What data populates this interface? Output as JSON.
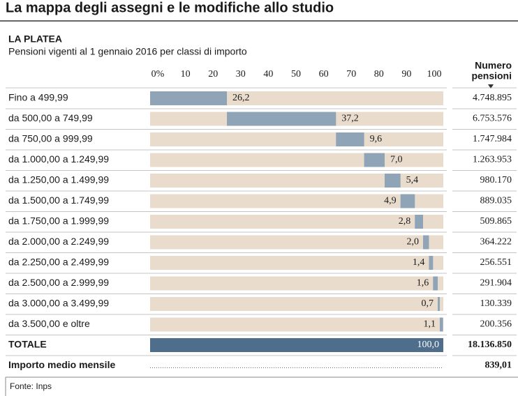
{
  "chart_data": {
    "type": "bar",
    "title": "La mappa degli assegni e le modifiche allo studio",
    "subtitle": "LA PLATEA",
    "description": "Pensioni vigenti al 1 gennaio 2016 per classi di importo",
    "count_header": [
      "Numero",
      "pensioni"
    ],
    "xlim": [
      0,
      100
    ],
    "xticks": [
      {
        "value": 0,
        "label": "0%"
      },
      10,
      20,
      30,
      40,
      50,
      60,
      70,
      80,
      90,
      100
    ],
    "color": "#8fa4b6",
    "background_color": "#e9dccd",
    "categories": [
      "Fino a 499,99",
      "da 500,00 a 749,99",
      "da 750,00 a 999,99",
      "da 1.000,00 a 1.249,99",
      "da 1.250,00 a 1.499,99",
      "da 1.500,00 a 1.749,99",
      "da 1.750,00 a 1.999,99",
      "da 2.000,00 a 2.249,99",
      "da 2.250,00 a 2.499,99",
      "da 2.500,00 a 2.999,99",
      "da 3.000,00 a 3.499,99",
      "da 3.500,00 e oltre"
    ],
    "values": [
      26.2,
      37.2,
      9.6,
      7.0,
      5.4,
      4.9,
      2.8,
      2.0,
      1.4,
      1.6,
      0.7,
      1.1
    ],
    "value_labels": [
      "26,2",
      "37,2",
      "9,6",
      "7,0",
      "5,4",
      "4,9",
      "2,8",
      "2,0",
      "1,4",
      "1,6",
      "0,7",
      "1,1"
    ],
    "counts": [
      "4.748.895",
      "6.753.576",
      "1.747.984",
      "1.263.953",
      "980.170",
      "889.035",
      "509.865",
      "364.222",
      "256.551",
      "291.904",
      "130.339",
      "200.356"
    ],
    "total": {
      "label": "TOTALE",
      "value": 100,
      "value_label": "100,0",
      "count": "18.136.850",
      "color": "#4f6e8b"
    },
    "average": {
      "label": "Importo medio mensile",
      "value": "839,01"
    },
    "source": "Fonte: Inps"
  }
}
